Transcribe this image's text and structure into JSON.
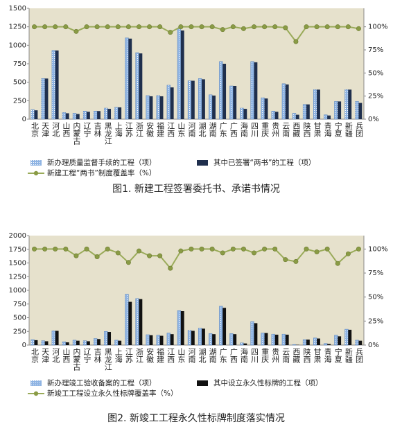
{
  "chart_data": [
    {
      "type": "bar",
      "title": "图1. 新建工程签署委托书、承诺书情况",
      "categories": [
        "北京",
        "天津",
        "河北",
        "山西",
        "内蒙古",
        "辽宁",
        "吉林",
        "黑龙江",
        "上海",
        "江苏",
        "浙江",
        "安徽",
        "福建",
        "江西",
        "山东",
        "河南",
        "湖北",
        "湖南",
        "广东",
        "广西",
        "海南",
        "四川",
        "重庆",
        "贵州",
        "云南",
        "西藏",
        "陕西",
        "甘肃",
        "青海",
        "宁夏",
        "新疆",
        "兵团"
      ],
      "series": [
        {
          "name": "新办理质量监督手续的工程（项）",
          "color": "#8fb4e3",
          "values": [
            130,
            550,
            930,
            90,
            80,
            110,
            110,
            150,
            160,
            1100,
            900,
            320,
            320,
            460,
            1220,
            520,
            550,
            330,
            780,
            450,
            150,
            780,
            290,
            110,
            480,
            80,
            200,
            400,
            60,
            240,
            400,
            240
          ]
        },
        {
          "name": "其中已签署“两书”的工程（项）",
          "color": "#1f2f4d",
          "values": [
            120,
            550,
            930,
            80,
            70,
            100,
            110,
            140,
            160,
            1090,
            890,
            310,
            310,
            430,
            1200,
            520,
            540,
            320,
            750,
            450,
            140,
            770,
            280,
            100,
            470,
            60,
            200,
            400,
            50,
            240,
            400,
            220
          ]
        },
        {
          "name": "新建工程“两书”制度覆盖率（%）",
          "color": "#9aab5a",
          "type": "line",
          "axis": "y2",
          "values": [
            100,
            100,
            100,
            100,
            95,
            100,
            100,
            100,
            100,
            100,
            100,
            100,
            100,
            94,
            100,
            100,
            100,
            100,
            97,
            100,
            98,
            100,
            100,
            100,
            99,
            84,
            100,
            100,
            100,
            100,
            100,
            98
          ]
        }
      ],
      "ylim": [
        0,
        1500
      ],
      "yticks": [
        0,
        250,
        500,
        750,
        1000,
        1250,
        1500
      ],
      "y2lim": [
        0,
        120
      ],
      "y2ticks": [
        {
          "value": 0,
          "label": "0%"
        },
        {
          "value": 25,
          "label": "25%"
        },
        {
          "value": 50,
          "label": "50%"
        },
        {
          "value": 75,
          "label": "75%"
        },
        {
          "value": 100,
          "label": "100%"
        }
      ],
      "grid": false
    },
    {
      "type": "bar",
      "title": "图2. 新竣工工程永久性标牌制度落实情况",
      "categories": [
        "北京",
        "天津",
        "河北",
        "山西",
        "内蒙古",
        "辽宁",
        "吉林",
        "黑龙江",
        "上海",
        "江苏",
        "浙江",
        "安徽",
        "福建",
        "江西",
        "山东",
        "河南",
        "湖北",
        "湖南",
        "广东",
        "广西",
        "海南",
        "四川",
        "重庆",
        "贵州",
        "云南",
        "西藏",
        "陕西",
        "甘肃",
        "青海",
        "宁夏",
        "新疆",
        "兵团"
      ],
      "series": [
        {
          "name": "新办理竣工验收备案的工程（项）",
          "color": "#8fb4e3",
          "values": [
            100,
            80,
            260,
            60,
            90,
            80,
            120,
            250,
            90,
            930,
            850,
            190,
            180,
            220,
            630,
            270,
            310,
            210,
            710,
            210,
            40,
            430,
            220,
            200,
            200,
            10,
            100,
            130,
            30,
            180,
            290,
            90
          ]
        },
        {
          "name": "其中设立永久性标牌的工程（项）",
          "color": "#111111",
          "values": [
            90,
            70,
            260,
            50,
            80,
            70,
            110,
            240,
            80,
            790,
            840,
            180,
            170,
            200,
            620,
            260,
            300,
            200,
            680,
            200,
            30,
            400,
            220,
            190,
            190,
            5,
            100,
            120,
            20,
            160,
            280,
            80
          ]
        },
        {
          "name": "新竣工工程设立永久性标牌覆盖率（%）",
          "color": "#9aab5a",
          "type": "line",
          "axis": "y2",
          "values": [
            100,
            100,
            100,
            100,
            93,
            100,
            92,
            100,
            96,
            86,
            98,
            93,
            93,
            80,
            98,
            100,
            100,
            100,
            96,
            100,
            100,
            96,
            100,
            100,
            89,
            87,
            100,
            97,
            100,
            85,
            95,
            100
          ]
        }
      ],
      "ylim": [
        0,
        2000
      ],
      "yticks": [
        0,
        250,
        500,
        750,
        1000,
        1250,
        1500,
        1750,
        2000
      ],
      "y2lim": [
        0,
        114
      ],
      "y2ticks": [
        {
          "value": 0,
          "label": "0%"
        },
        {
          "value": 25,
          "label": "25%"
        },
        {
          "value": 50,
          "label": "50%"
        },
        {
          "value": 75,
          "label": "75%"
        },
        {
          "value": 100,
          "label": "100%"
        }
      ],
      "grid": false
    }
  ]
}
